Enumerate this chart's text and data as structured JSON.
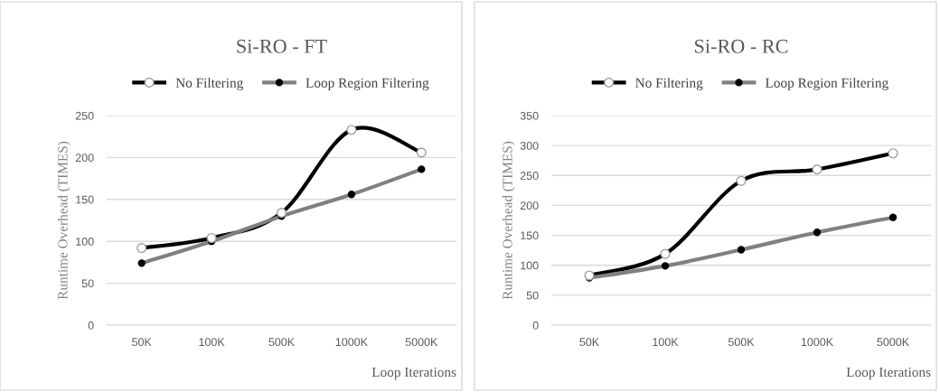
{
  "chart_data": [
    {
      "type": "line",
      "title": "Si-RO - FT",
      "xlabel": "Loop Iterations",
      "ylabel": "Runtime Overhead (TIMES)",
      "categories": [
        "50K",
        "100K",
        "500K",
        "1000K",
        "5000K"
      ],
      "ylim": [
        0,
        250
      ],
      "yticks": [
        0,
        50,
        100,
        150,
        200,
        250
      ],
      "grid": "y",
      "legend": "top",
      "series": [
        {
          "name": "No Filtering",
          "color": "#000000",
          "marker": "circle",
          "values": [
            92,
            104,
            134,
            233,
            206
          ]
        },
        {
          "name": "Loop Region Filtering",
          "color": "#808080",
          "marker": "circle",
          "values": [
            74,
            100,
            130,
            156,
            186
          ]
        }
      ]
    },
    {
      "type": "line",
      "title": "Si-RO - RC",
      "xlabel": "Loop Iterations",
      "ylabel": "Runtime Overhead (TIMES)",
      "categories": [
        "50K",
        "100K",
        "500K",
        "1000K",
        "5000K"
      ],
      "ylim": [
        0,
        350
      ],
      "yticks": [
        0,
        50,
        100,
        150,
        200,
        250,
        300,
        350
      ],
      "grid": "y",
      "legend": "top",
      "series": [
        {
          "name": "No Filtering",
          "color": "#000000",
          "marker": "circle",
          "values": [
            83,
            119,
            241,
            260,
            287
          ]
        },
        {
          "name": "Loop Region Filtering",
          "color": "#808080",
          "marker": "circle",
          "values": [
            79,
            99,
            126,
            155,
            180
          ]
        }
      ]
    }
  ]
}
